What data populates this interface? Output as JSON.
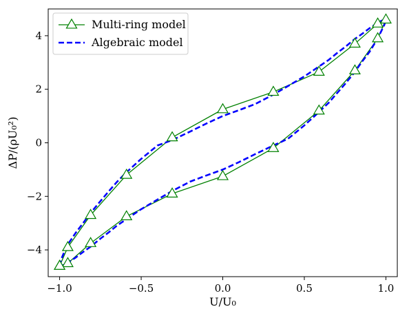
{
  "chart_data": {
    "type": "line",
    "xlabel": "U/U₀",
    "ylabel": "ΔP/(ρU₀²)",
    "xlim": [
      -1.07,
      1.07
    ],
    "ylim": [
      -5.0,
      5.0
    ],
    "x_ticks": [
      -1.0,
      -0.5,
      0.0,
      0.5,
      1.0
    ],
    "x_tick_labels": [
      "−1.0",
      "−0.5",
      "0.0",
      "0.5",
      "1.0"
    ],
    "y_ticks": [
      -4,
      -2,
      0,
      2,
      4
    ],
    "y_tick_labels": [
      "−4",
      "−2",
      "0",
      "2",
      "4"
    ],
    "grid": false,
    "legend_position": "top-left",
    "series": [
      {
        "name": "Multi-ring model",
        "color": "#008000",
        "line_style": "solid",
        "marker": "triangle-open",
        "x": [
          -1.0,
          -0.95,
          -0.81,
          -0.59,
          -0.31,
          0.0,
          0.31,
          0.59,
          0.81,
          0.95,
          1.0,
          0.95,
          0.81,
          0.59,
          0.31,
          0.0,
          -0.31,
          -0.59,
          -0.81,
          -0.95,
          -1.0
        ],
        "y": [
          -4.6,
          -3.9,
          -2.7,
          -1.2,
          0.2,
          1.25,
          1.9,
          2.65,
          3.7,
          4.45,
          4.6,
          3.9,
          2.7,
          1.2,
          -0.2,
          -1.25,
          -1.9,
          -2.75,
          -3.75,
          -4.5,
          -4.6
        ]
      },
      {
        "name": "Algebraic model",
        "color": "#0000ff",
        "line_style": "dashed",
        "x": [
          -1.0,
          -0.99,
          -0.97,
          -0.95,
          -0.9,
          -0.85,
          -0.81,
          -0.75,
          -0.7,
          -0.65,
          -0.59,
          -0.5,
          -0.4,
          -0.31,
          -0.2,
          -0.1,
          0.0,
          0.1,
          0.2,
          0.31,
          0.4,
          0.5,
          0.59,
          0.65,
          0.7,
          0.75,
          0.81,
          0.85,
          0.9,
          0.95,
          0.97,
          0.99,
          1.0,
          0.99,
          0.97,
          0.95,
          0.9,
          0.85,
          0.81,
          0.75,
          0.7,
          0.65,
          0.59,
          0.5,
          0.4,
          0.31,
          0.2,
          0.1,
          0.0,
          -0.1,
          -0.2,
          -0.31,
          -0.4,
          -0.5,
          -0.59,
          -0.65,
          -0.7,
          -0.75,
          -0.81,
          -0.85,
          -0.9,
          -0.95,
          -0.97,
          -0.99,
          -1.0
        ],
        "y": [
          -4.6,
          -4.35,
          -4.05,
          -3.8,
          -3.35,
          -2.95,
          -2.62,
          -2.18,
          -1.82,
          -1.47,
          -1.1,
          -0.6,
          -0.1,
          0.1,
          0.42,
          0.72,
          1.0,
          1.22,
          1.45,
          1.8,
          2.12,
          2.48,
          2.85,
          3.1,
          3.35,
          3.58,
          3.88,
          4.05,
          4.28,
          4.48,
          4.55,
          4.6,
          4.6,
          4.4,
          4.15,
          3.9,
          3.4,
          3.0,
          2.65,
          2.2,
          1.85,
          1.5,
          1.15,
          0.65,
          0.15,
          -0.1,
          -0.42,
          -0.72,
          -1.0,
          -1.22,
          -1.45,
          -1.8,
          -2.12,
          -2.48,
          -2.85,
          -3.1,
          -3.35,
          -3.58,
          -3.88,
          -4.05,
          -4.28,
          -4.48,
          -4.55,
          -4.6,
          -4.6
        ]
      }
    ]
  }
}
